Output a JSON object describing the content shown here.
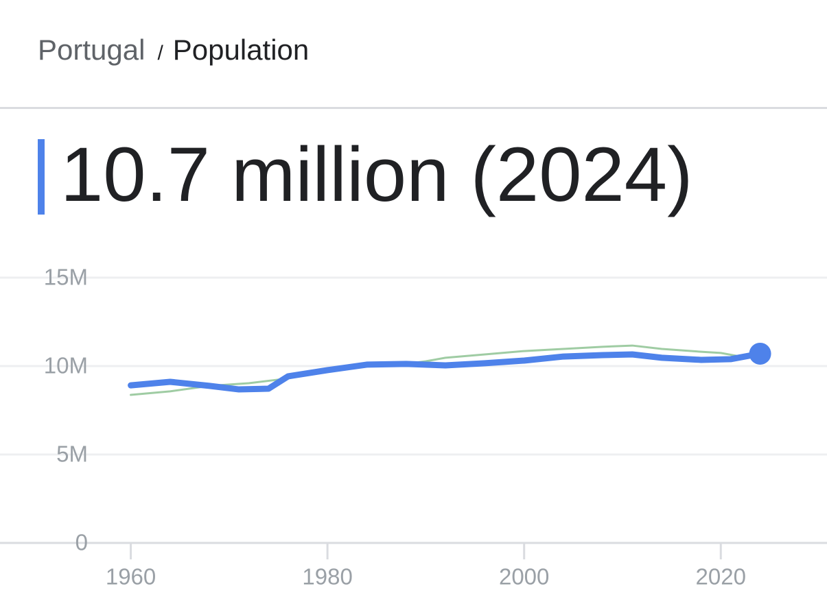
{
  "breadcrumb": {
    "parent": "Portugal",
    "separator": "/",
    "current": "Population"
  },
  "headline": "10.7 million (2024)",
  "chart_data": {
    "type": "line",
    "xlim": [
      1946.7,
      2030.8
    ],
    "xticks": [
      1960,
      1980,
      2000,
      2020
    ],
    "ylim": [
      0,
      15000000
    ],
    "yticks": [
      {
        "value": 0,
        "label": "0"
      },
      {
        "value": 5000000,
        "label": "5M"
      },
      {
        "value": 10000000,
        "label": "10M"
      },
      {
        "value": 15000000,
        "label": "15M"
      }
    ],
    "grid": true,
    "series": [
      {
        "color": "#9fcca3",
        "x": [
          1960,
          1964,
          1968,
          1972,
          1976,
          1980,
          1984,
          1988,
          1990,
          1992,
          1996,
          2000,
          2004,
          2008,
          2011,
          2014,
          2018,
          2020,
          2022
        ],
        "values": [
          8370000,
          8570000,
          8880000,
          9030000,
          9300000,
          9730000,
          10040000,
          10120000,
          10270000,
          10470000,
          10660000,
          10850000,
          10970000,
          11090000,
          11160000,
          10970000,
          10810000,
          10740000,
          10540000
        ]
      },
      {
        "color": "#4e82ea",
        "x": [
          1960,
          1964,
          1968,
          1971,
          1974,
          1976,
          1980,
          1984,
          1988,
          1992,
          1996,
          2000,
          2004,
          2008,
          2011,
          2014,
          2018,
          2021,
          2024
        ],
        "values": [
          8910000,
          9110000,
          8880000,
          8680000,
          8720000,
          9420000,
          9770000,
          10080000,
          10120000,
          10040000,
          10160000,
          10310000,
          10540000,
          10620000,
          10660000,
          10470000,
          10350000,
          10390000,
          10700000
        ]
      }
    ]
  }
}
